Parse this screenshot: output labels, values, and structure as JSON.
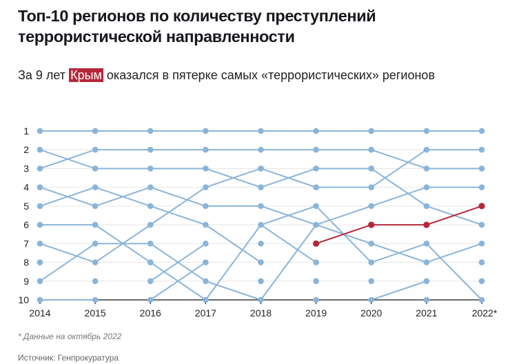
{
  "title": "Топ-10 регионов по количеству преступлений террористической направленности",
  "subtitle": {
    "before": "За 9 лет",
    "highlight": "Крым",
    "after": "оказался в пятерке самых «террористических» регионов"
  },
  "note": "* Данные на октябрь 2022",
  "source": "Источник: Генпрокуратура",
  "colors": {
    "default": "#8ab4d9",
    "highlight": "#b5273a",
    "axis": "#111111",
    "grid": "#e6e6e6"
  },
  "chart_data": {
    "type": "line",
    "subtype": "bump",
    "x": [
      "2014",
      "2015",
      "2016",
      "2017",
      "2018",
      "2019",
      "2020",
      "2021",
      "2022*"
    ],
    "y_ticks": [
      1,
      2,
      3,
      4,
      5,
      6,
      7,
      8,
      9,
      10
    ],
    "ylim": [
      10,
      1
    ],
    "y_reversed": true,
    "grid": true,
    "points_all_ranks": true,
    "segments": [
      [
        "2014",
        1,
        "2015",
        1
      ],
      [
        "2014",
        2,
        "2015",
        3
      ],
      [
        "2014",
        3,
        "2015",
        2
      ],
      [
        "2014",
        4,
        "2015",
        5
      ],
      [
        "2014",
        5,
        "2015",
        4
      ],
      [
        "2014",
        6,
        "2015",
        6
      ],
      [
        "2014",
        7,
        "2015",
        8
      ],
      [
        "2014",
        9,
        "2015",
        7
      ],
      [
        "2014",
        10,
        "2015",
        10
      ],
      [
        "2015",
        1,
        "2016",
        1
      ],
      [
        "2015",
        2,
        "2016",
        2
      ],
      [
        "2015",
        3,
        "2016",
        3
      ],
      [
        "2015",
        4,
        "2016",
        5
      ],
      [
        "2015",
        5,
        "2016",
        4
      ],
      [
        "2015",
        6,
        "2016",
        8
      ],
      [
        "2015",
        7,
        "2016",
        7
      ],
      [
        "2015",
        8,
        "2016",
        6
      ],
      [
        "2016",
        1,
        "2017",
        1
      ],
      [
        "2016",
        2,
        "2017",
        2
      ],
      [
        "2016",
        3,
        "2017",
        3
      ],
      [
        "2016",
        4,
        "2017",
        5
      ],
      [
        "2016",
        5,
        "2017",
        6
      ],
      [
        "2016",
        6,
        "2017",
        4
      ],
      [
        "2016",
        7,
        "2017",
        9
      ],
      [
        "2016",
        8,
        "2017",
        10
      ],
      [
        "2016",
        9,
        "2017",
        7
      ],
      [
        "2016",
        10,
        "2017",
        8
      ],
      [
        "2017",
        1,
        "2018",
        1
      ],
      [
        "2017",
        2,
        "2018",
        2
      ],
      [
        "2017",
        3,
        "2018",
        4
      ],
      [
        "2017",
        4,
        "2018",
        3
      ],
      [
        "2017",
        5,
        "2018",
        5
      ],
      [
        "2017",
        6,
        "2018",
        8
      ],
      [
        "2017",
        9,
        "2018",
        10
      ],
      [
        "2017",
        10,
        "2018",
        6
      ],
      [
        "2018",
        1,
        "2019",
        1
      ],
      [
        "2018",
        2,
        "2019",
        2
      ],
      [
        "2018",
        3,
        "2019",
        4
      ],
      [
        "2018",
        4,
        "2019",
        3
      ],
      [
        "2018",
        5,
        "2019",
        6
      ],
      [
        "2018",
        6,
        "2019",
        5
      ],
      [
        "2018",
        6,
        "2019",
        8
      ],
      [
        "2018",
        10,
        "2019",
        6
      ],
      [
        "2019",
        1,
        "2020",
        1
      ],
      [
        "2019",
        2,
        "2020",
        2
      ],
      [
        "2019",
        3,
        "2020",
        3
      ],
      [
        "2019",
        4,
        "2020",
        4
      ],
      [
        "2019",
        5,
        "2020",
        8
      ],
      [
        "2019",
        6,
        "2020",
        5
      ],
      [
        "2019",
        6,
        "2020",
        7
      ],
      [
        "2020",
        1,
        "2021",
        1
      ],
      [
        "2020",
        2,
        "2021",
        3
      ],
      [
        "2020",
        3,
        "2021",
        5
      ],
      [
        "2020",
        4,
        "2021",
        2
      ],
      [
        "2020",
        5,
        "2021",
        4
      ],
      [
        "2020",
        7,
        "2021",
        8
      ],
      [
        "2020",
        8,
        "2021",
        7
      ],
      [
        "2020",
        10,
        "2021",
        9
      ],
      [
        "2021",
        1,
        "2022*",
        1
      ],
      [
        "2021",
        2,
        "2022*",
        2
      ],
      [
        "2021",
        3,
        "2022*",
        3
      ],
      [
        "2021",
        4,
        "2022*",
        4
      ],
      [
        "2021",
        5,
        "2022*",
        6
      ],
      [
        "2021",
        7,
        "2022*",
        10
      ],
      [
        "2021",
        8,
        "2022*",
        7
      ]
    ],
    "highlight_series": {
      "name": "Крым",
      "x": [
        "2019",
        "2020",
        "2021",
        "2022*"
      ],
      "ranks": [
        7,
        6,
        6,
        5
      ]
    }
  }
}
